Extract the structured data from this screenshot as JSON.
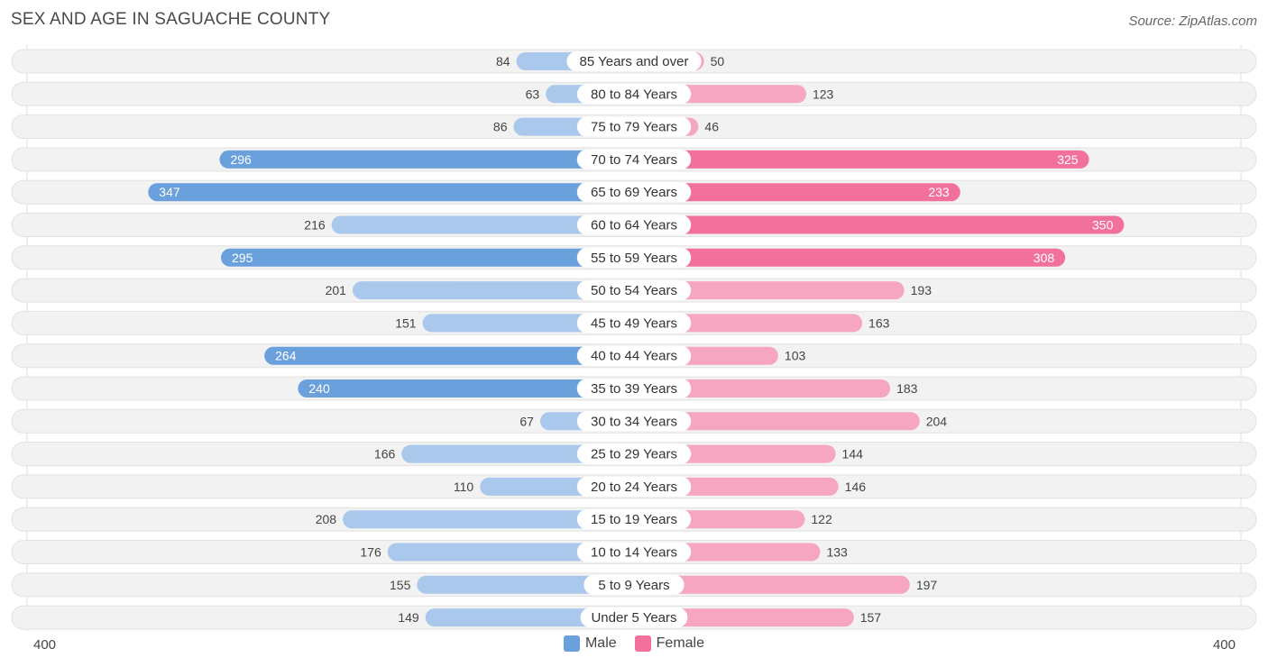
{
  "header": {
    "title": "SEX AND AGE IN SAGUACHE COUNTY",
    "source": "Source: ZipAtlas.com"
  },
  "colors": {
    "male_strong": "#6aa0dc",
    "male_light": "#a9c8ec",
    "female_strong": "#f2719c",
    "female_light": "#f6a6c0",
    "row_bg": "#f2f2f2",
    "row_border": "#e2e2e2"
  },
  "chart_data": {
    "type": "bar",
    "orientation": "horizontal-diverging",
    "title": "SEX AND AGE IN SAGUACHE COUNTY",
    "xlim": [
      -400,
      400
    ],
    "axis_left_label": "400",
    "axis_right_label": "400",
    "categories": [
      "85 Years and over",
      "80 to 84 Years",
      "75 to 79 Years",
      "70 to 74 Years",
      "65 to 69 Years",
      "60 to 64 Years",
      "55 to 59 Years",
      "50 to 54 Years",
      "45 to 49 Years",
      "40 to 44 Years",
      "35 to 39 Years",
      "30 to 34 Years",
      "25 to 29 Years",
      "20 to 24 Years",
      "15 to 19 Years",
      "10 to 14 Years",
      "5 to 9 Years",
      "Under 5 Years"
    ],
    "series": [
      {
        "name": "Male",
        "values": [
          84,
          63,
          86,
          296,
          347,
          216,
          295,
          201,
          151,
          264,
          240,
          67,
          166,
          110,
          208,
          176,
          155,
          149
        ]
      },
      {
        "name": "Female",
        "values": [
          50,
          123,
          46,
          325,
          233,
          350,
          308,
          193,
          163,
          103,
          183,
          204,
          144,
          146,
          122,
          133,
          197,
          157
        ]
      }
    ],
    "legend": [
      "Male",
      "Female"
    ],
    "legend_position": "bottom-center"
  }
}
